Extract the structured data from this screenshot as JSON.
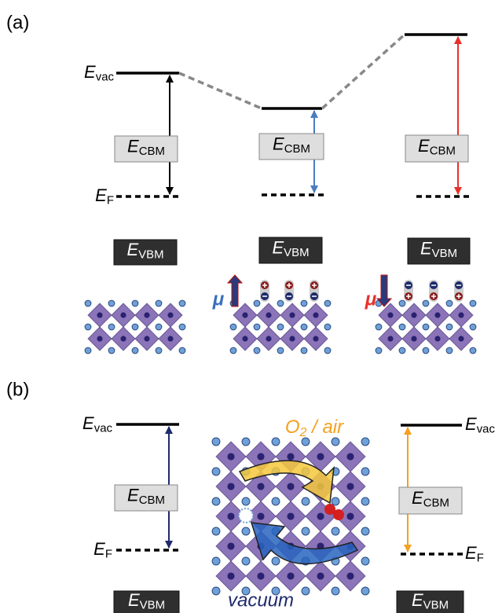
{
  "panel_a": {
    "label": "(a)",
    "mu": "μ"
  },
  "panel_b": {
    "label": "(b)",
    "gas": {
      "main": "O",
      "sub": "2",
      "rest": " / air"
    },
    "vacuum": "vacuum"
  },
  "energy": {
    "symbol": "E",
    "vac": "vac",
    "cbm": "CBM",
    "f": "F",
    "vbm": "VBM"
  }
}
